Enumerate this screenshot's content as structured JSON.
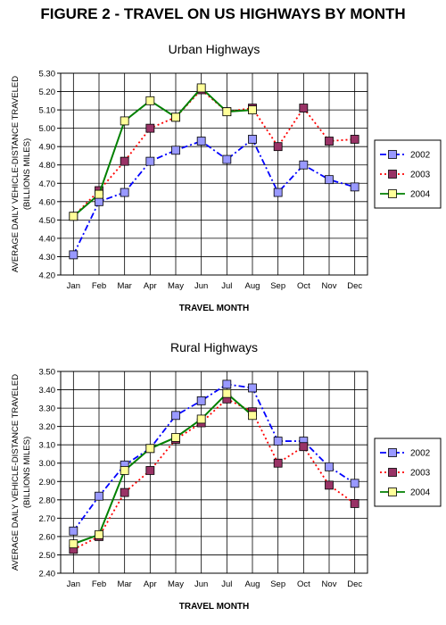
{
  "figure_title": "FIGURE 2 - TRAVEL ON US HIGHWAYS BY MONTH",
  "chart_data": [
    {
      "type": "line",
      "title": "Urban Highways",
      "xlabel": "TRAVEL MONTH",
      "ylabel": "AVERAGE DAILY VEHICLE-DISTANCE TRAVELED",
      "ylabel2": "(BILLIONS MILES)",
      "categories": [
        "Jan",
        "Feb",
        "Mar",
        "Apr",
        "May",
        "Jun",
        "Jul",
        "Aug",
        "Sep",
        "Oct",
        "Nov",
        "Dec"
      ],
      "ylim": [
        4.2,
        5.3
      ],
      "ytick_step": 0.1,
      "grid": true,
      "legend_placement": "right",
      "series": [
        {
          "name": "2002",
          "color": "#0000ff",
          "marker_color": "#9999ff",
          "line": "dash-dot",
          "values": [
            4.31,
            4.6,
            4.65,
            4.82,
            4.88,
            4.93,
            4.83,
            4.94,
            4.65,
            4.8,
            4.72,
            4.68
          ]
        },
        {
          "name": "2003",
          "color": "#ff0000",
          "marker_color": "#993366",
          "line": "dotted",
          "values": [
            4.52,
            4.66,
            4.82,
            5.0,
            5.06,
            5.21,
            5.09,
            5.11,
            4.9,
            5.11,
            4.93,
            4.94
          ]
        },
        {
          "name": "2004",
          "color": "#008000",
          "marker_color": "#ffff99",
          "line": "solid",
          "values": [
            4.52,
            4.64,
            5.04,
            5.15,
            5.06,
            5.22,
            5.09,
            5.1,
            null,
            null,
            null,
            null
          ]
        }
      ]
    },
    {
      "type": "line",
      "title": "Rural Highways",
      "xlabel": "TRAVEL MONTH",
      "ylabel": "AVERAGE DAILY VEHICLE-DISTANCE TRAVELED",
      "ylabel2": "(BILLIONS MILES)",
      "categories": [
        "Jan",
        "Feb",
        "Mar",
        "Apr",
        "May",
        "Jun",
        "Jul",
        "Aug",
        "Sep",
        "Oct",
        "Nov",
        "Dec"
      ],
      "ylim": [
        2.4,
        3.5
      ],
      "ytick_step": 0.1,
      "grid": true,
      "legend_placement": "right",
      "series": [
        {
          "name": "2002",
          "color": "#0000ff",
          "marker_color": "#9999ff",
          "line": "dash-dot",
          "values": [
            2.63,
            2.82,
            2.99,
            3.08,
            3.26,
            3.34,
            3.43,
            3.41,
            3.12,
            3.12,
            2.98,
            2.89
          ]
        },
        {
          "name": "2003",
          "color": "#ff0000",
          "marker_color": "#993366",
          "line": "dotted",
          "values": [
            2.53,
            2.6,
            2.84,
            2.96,
            3.13,
            3.22,
            3.35,
            3.28,
            3.0,
            3.09,
            2.88,
            2.78
          ]
        },
        {
          "name": "2004",
          "color": "#008000",
          "marker_color": "#ffff99",
          "line": "solid",
          "values": [
            2.56,
            2.61,
            2.96,
            3.08,
            3.14,
            3.24,
            3.38,
            3.26,
            null,
            null,
            null,
            null
          ]
        }
      ]
    }
  ]
}
